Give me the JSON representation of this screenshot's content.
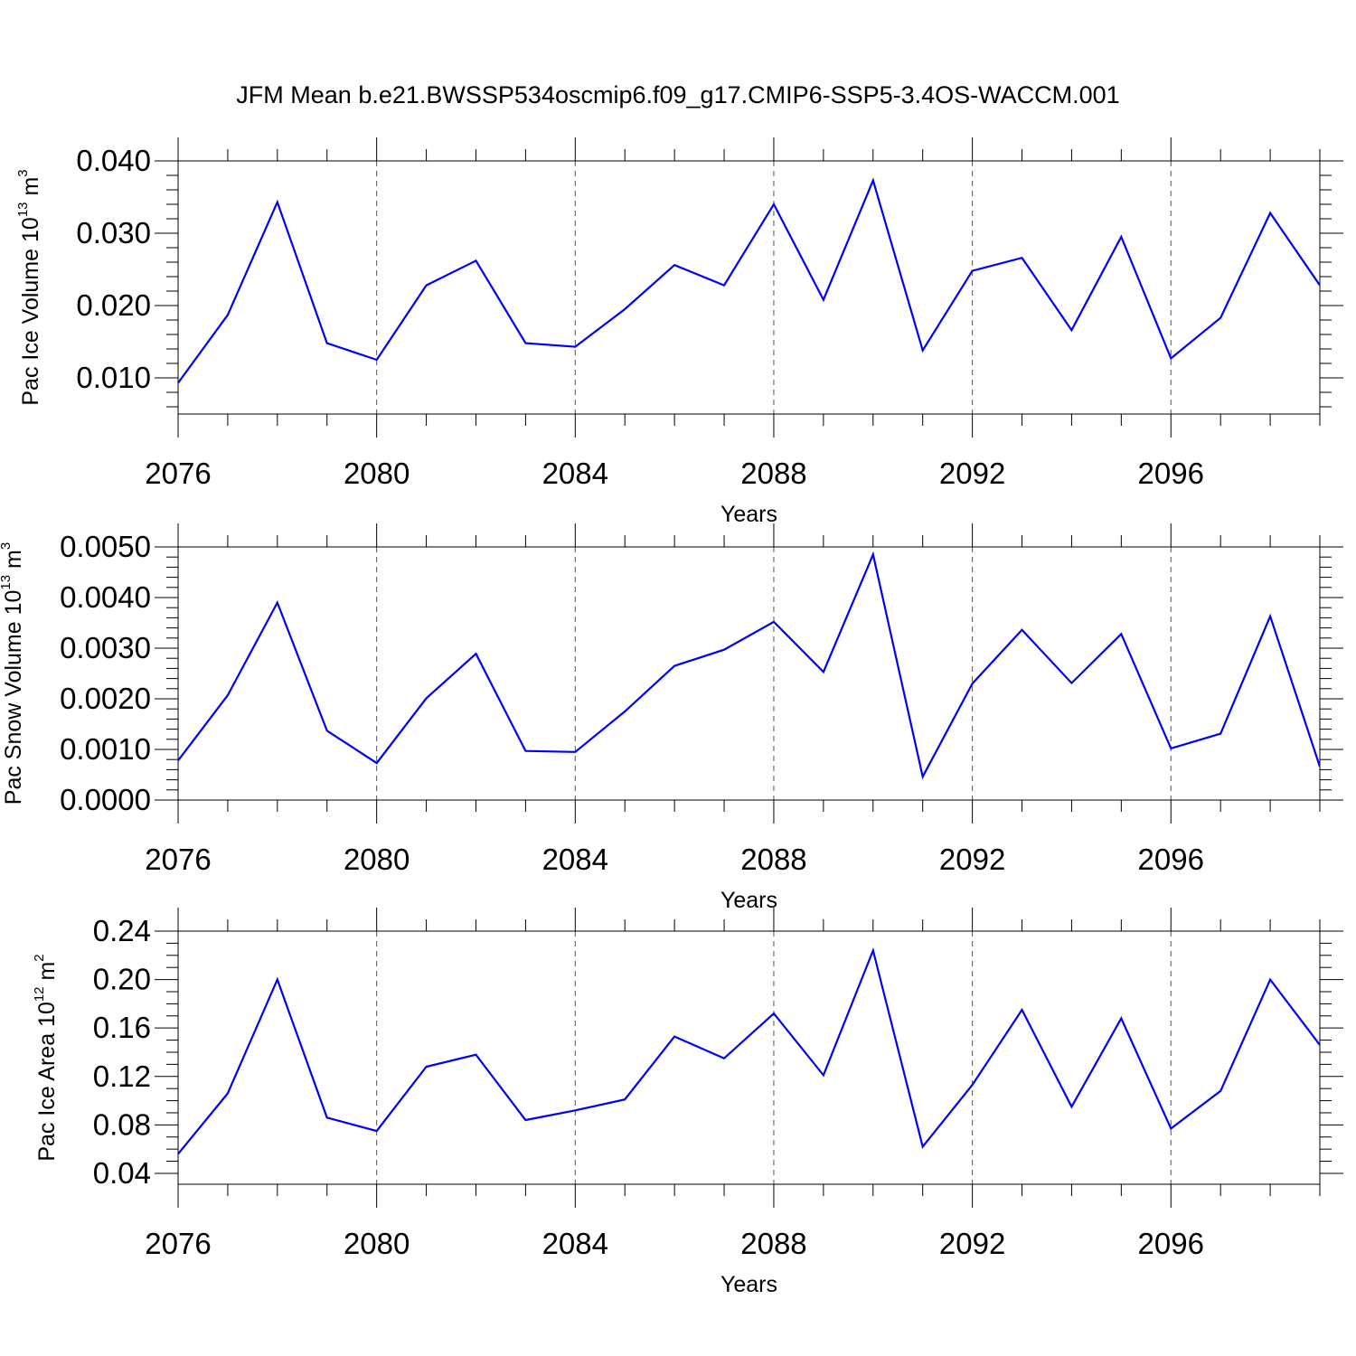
{
  "title": "JFM Mean b.e21.BWSSP534oscmip6.f09_g17.CMIP6-SSP5-3.4OS-WACCM.001",
  "line_color": "#0000ff",
  "chart_data": [
    {
      "type": "line",
      "ylabel": {
        "base": "Pac Ice Volume 10",
        "exp1": "13",
        "unit": " m",
        "exp2": "3"
      },
      "xlabel": "Years",
      "xlim": [
        2076,
        2099
      ],
      "ylim": [
        0.005,
        0.04
      ],
      "yticks": [
        0.01,
        0.02,
        0.03,
        0.04
      ],
      "ytick_labels": [
        "0.010",
        "0.020",
        "0.030",
        "0.040"
      ],
      "yminor_step": 0.002,
      "xticks": [
        2076,
        2080,
        2084,
        2088,
        2092,
        2096
      ],
      "xtick_labels": [
        "2076",
        "2080",
        "2084",
        "2088",
        "2092",
        "2096"
      ],
      "grid": "dashed vertical at major x ticks",
      "x": [
        2076,
        2077,
        2078,
        2079,
        2080,
        2081,
        2082,
        2083,
        2084,
        2085,
        2086,
        2087,
        2088,
        2089,
        2090,
        2091,
        2092,
        2093,
        2094,
        2095,
        2096,
        2097,
        2098,
        2099
      ],
      "y": [
        0.0093,
        0.0187,
        0.0343,
        0.0148,
        0.0125,
        0.0228,
        0.0262,
        0.0148,
        0.0143,
        0.0195,
        0.0256,
        0.0228,
        0.034,
        0.0208,
        0.0373,
        0.0138,
        0.0248,
        0.0266,
        0.0166,
        0.0295,
        0.0127,
        0.0183,
        0.0328,
        0.0228
      ]
    },
    {
      "type": "line",
      "ylabel": {
        "base": "Pac Snow Volume 10",
        "exp1": "13",
        "unit": " m",
        "exp2": "3"
      },
      "xlabel": "Years",
      "xlim": [
        2076,
        2099
      ],
      "ylim": [
        0.0,
        0.005
      ],
      "yticks": [
        0.0,
        0.001,
        0.002,
        0.003,
        0.004,
        0.005
      ],
      "ytick_labels": [
        "0.0000",
        "0.0010",
        "0.0020",
        "0.0030",
        "0.0040",
        "0.0050"
      ],
      "yminor_step": 0.0002,
      "xticks": [
        2076,
        2080,
        2084,
        2088,
        2092,
        2096
      ],
      "xtick_labels": [
        "2076",
        "2080",
        "2084",
        "2088",
        "2092",
        "2096"
      ],
      "grid": "dashed vertical at major x ticks",
      "x": [
        2076,
        2077,
        2078,
        2079,
        2080,
        2081,
        2082,
        2083,
        2084,
        2085,
        2086,
        2087,
        2088,
        2089,
        2090,
        2091,
        2092,
        2093,
        2094,
        2095,
        2096,
        2097,
        2098,
        2099
      ],
      "y": [
        0.00078,
        0.00207,
        0.0039,
        0.00137,
        0.00073,
        0.00201,
        0.00289,
        0.00097,
        0.00095,
        0.00175,
        0.00265,
        0.00297,
        0.00352,
        0.00253,
        0.00485,
        0.00046,
        0.0023,
        0.00336,
        0.00231,
        0.00328,
        0.00102,
        0.00131,
        0.00363,
        0.00066
      ]
    },
    {
      "type": "line",
      "ylabel": {
        "base": "Pac Ice Area 10",
        "exp1": "12",
        "unit": " m",
        "exp2": "2"
      },
      "xlabel": "Years",
      "xlim": [
        2076,
        2099
      ],
      "ylim": [
        0.031,
        0.24
      ],
      "yticks": [
        0.04,
        0.08,
        0.12,
        0.16,
        0.2,
        0.24
      ],
      "ytick_labels": [
        "0.04",
        "0.08",
        "0.12",
        "0.16",
        "0.20",
        "0.24"
      ],
      "yminor_step": 0.01,
      "xticks": [
        2076,
        2080,
        2084,
        2088,
        2092,
        2096
      ],
      "xtick_labels": [
        "2076",
        "2080",
        "2084",
        "2088",
        "2092",
        "2096"
      ],
      "grid": "dashed vertical at major x ticks",
      "x": [
        2076,
        2077,
        2078,
        2079,
        2080,
        2081,
        2082,
        2083,
        2084,
        2085,
        2086,
        2087,
        2088,
        2089,
        2090,
        2091,
        2092,
        2093,
        2094,
        2095,
        2096,
        2097,
        2098,
        2099
      ],
      "y": [
        0.056,
        0.106,
        0.2,
        0.086,
        0.075,
        0.128,
        0.138,
        0.084,
        0.092,
        0.101,
        0.153,
        0.135,
        0.172,
        0.121,
        0.224,
        0.062,
        0.113,
        0.175,
        0.095,
        0.168,
        0.077,
        0.108,
        0.2,
        0.146
      ]
    }
  ]
}
